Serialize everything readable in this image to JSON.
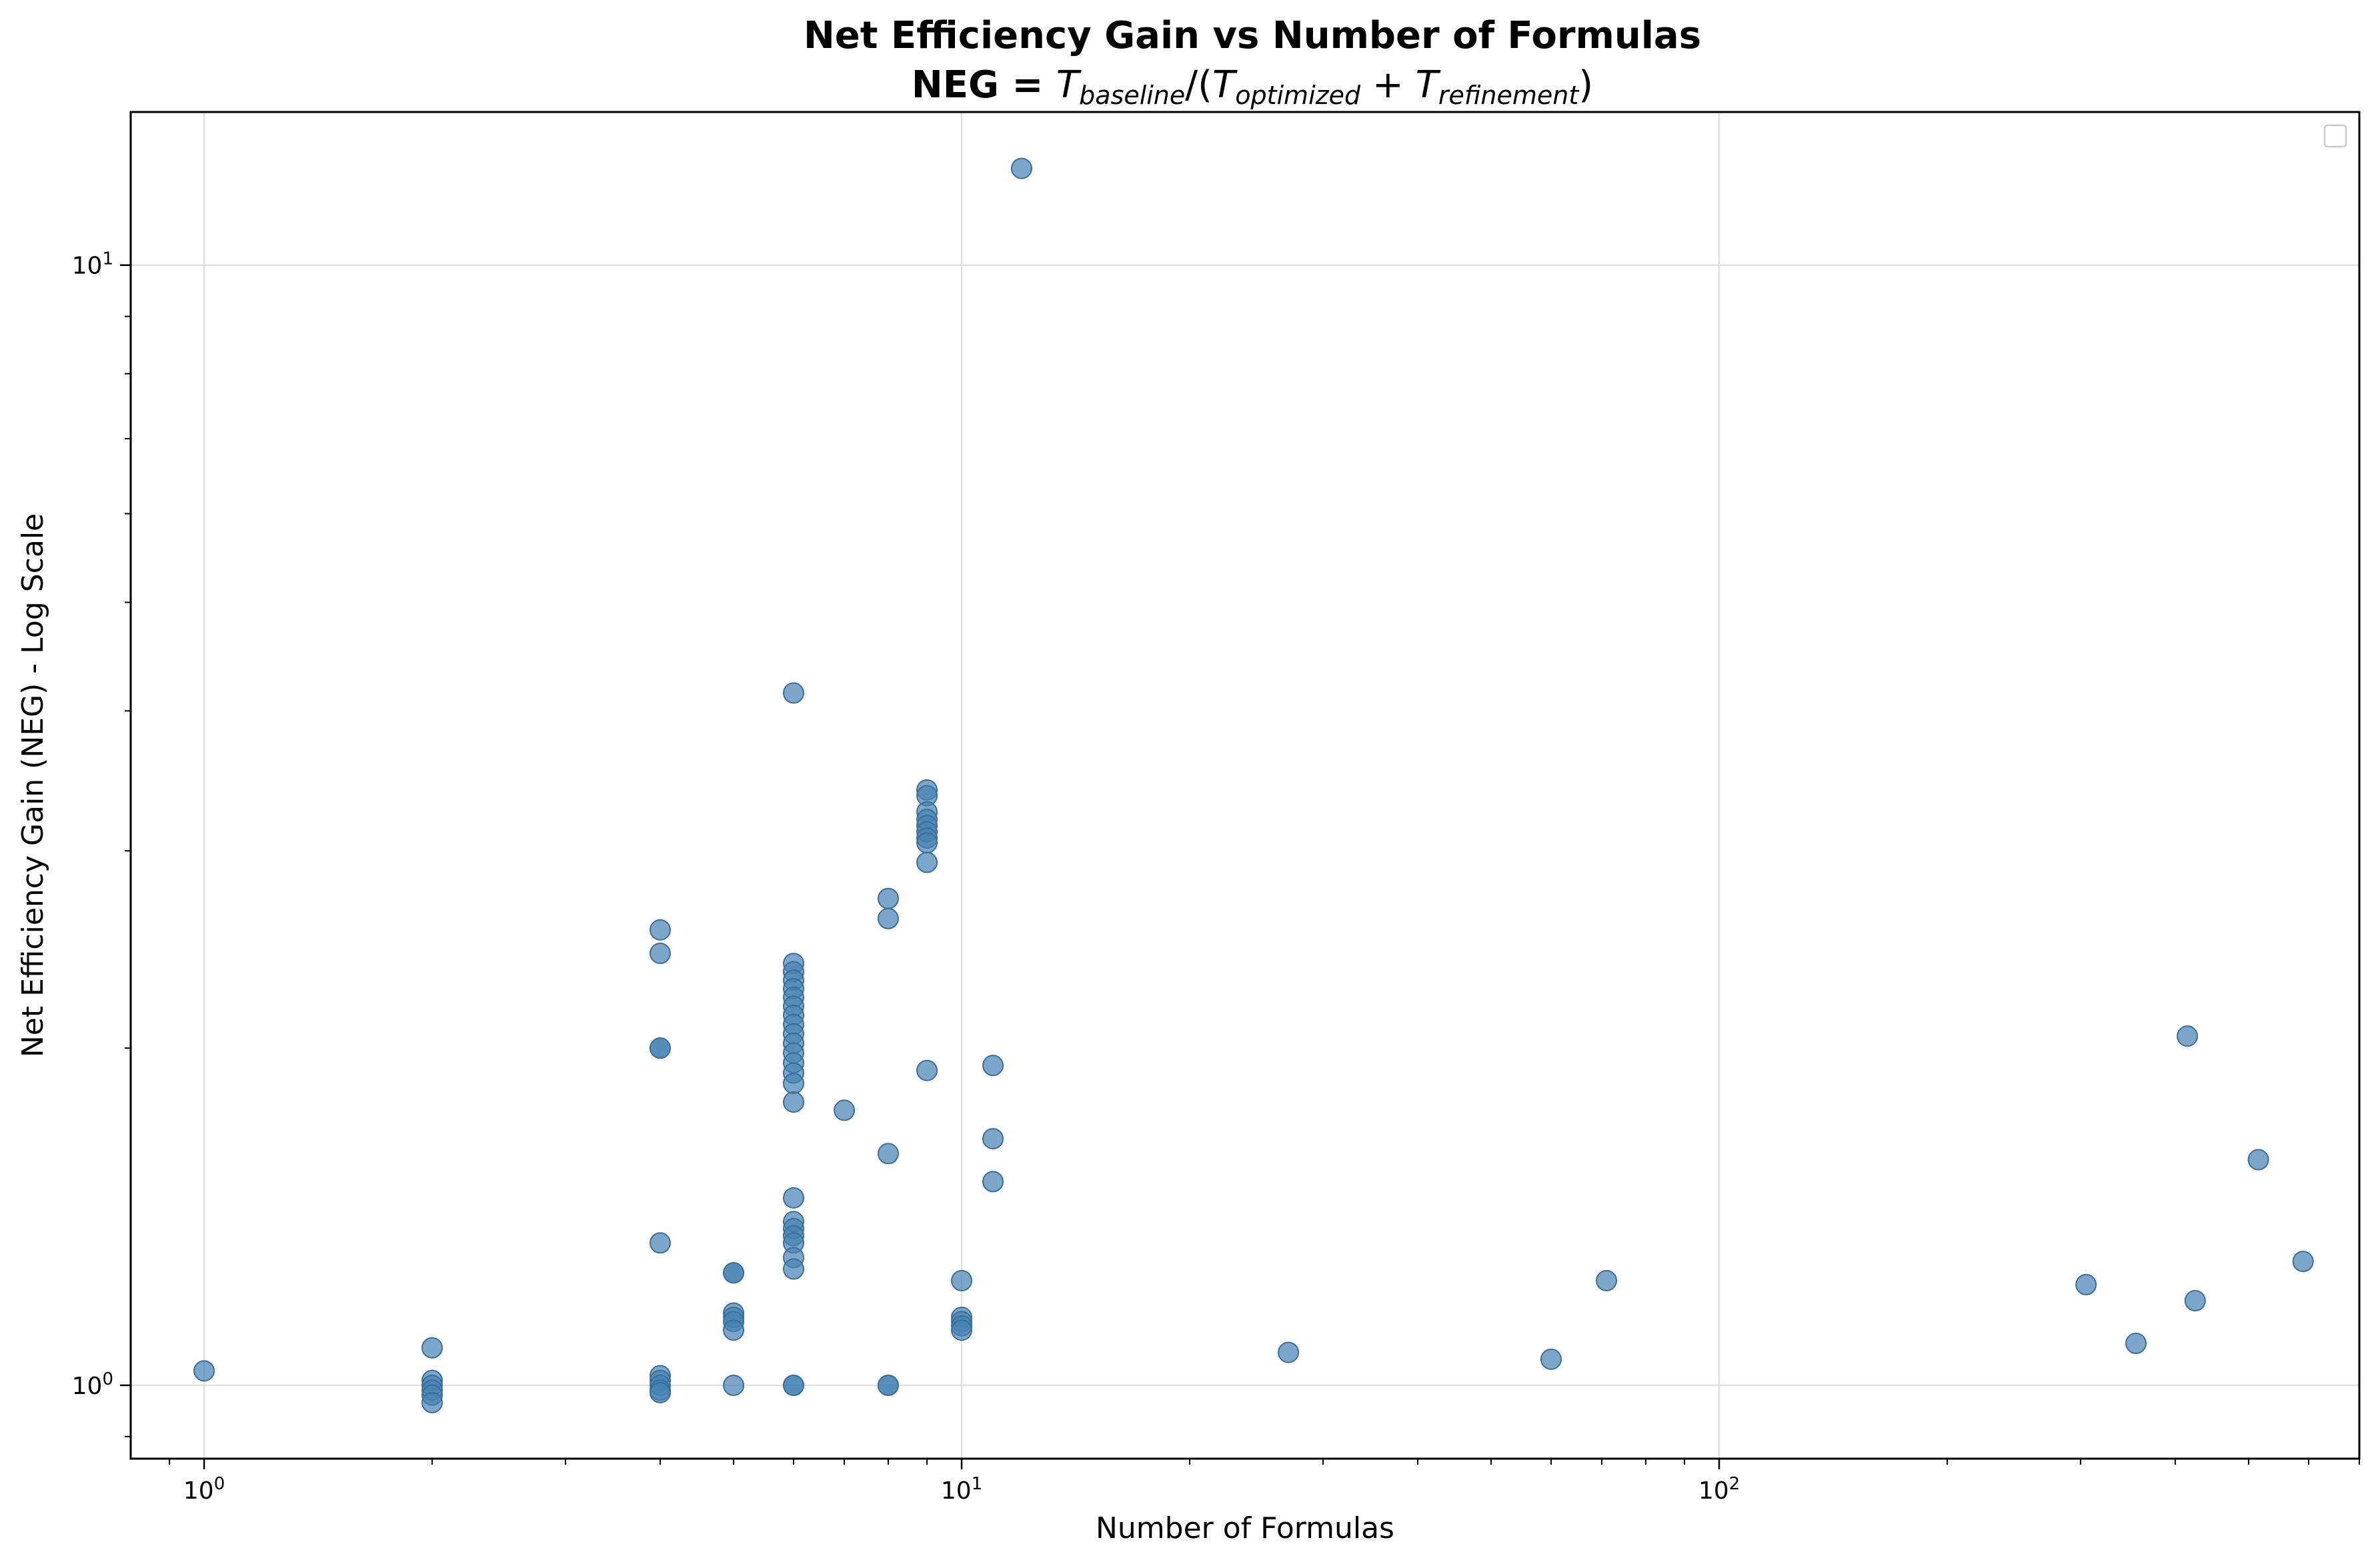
{
  "chart_data": {
    "type": "scatter",
    "title": "Net Efficiency Gain vs Number of Formulas",
    "subtitle": {
      "prefix": "NEG = ",
      "t": "T",
      "sub_baseline": "baseline",
      "sub_optimized": "optimized",
      "sub_refinement": "refinement"
    },
    "xlabel": "Number of Formulas",
    "ylabel": "Net Efficiency Gain (NEG) - Log Scale",
    "xscale": "log",
    "yscale": "log",
    "xlim": [
      0.8,
      700
    ],
    "ylim": [
      0.86,
      13.7
    ],
    "x_ticks": [
      {
        "value": 1,
        "base": "10",
        "exp": "0"
      },
      {
        "value": 10,
        "base": "10",
        "exp": "1"
      },
      {
        "value": 100,
        "base": "10",
        "exp": "2"
      }
    ],
    "y_ticks": [
      {
        "value": 1,
        "base": "10",
        "exp": "0"
      },
      {
        "value": 10,
        "base": "10",
        "exp": "1"
      }
    ],
    "grid": true,
    "legend": "top-right (empty)",
    "color": "#4682b4",
    "points": [
      [
        1,
        1.03
      ],
      [
        2,
        1.08
      ],
      [
        2,
        1.01
      ],
      [
        2,
        1.0
      ],
      [
        2,
        0.99
      ],
      [
        2,
        0.98
      ],
      [
        2,
        0.965
      ],
      [
        4,
        2.55
      ],
      [
        4,
        2.43
      ],
      [
        4,
        2.0
      ],
      [
        4,
        2.0
      ],
      [
        4,
        1.34
      ],
      [
        4,
        1.02
      ],
      [
        4,
        1.01
      ],
      [
        4,
        1.0
      ],
      [
        4,
        0.99
      ],
      [
        4,
        0.985
      ],
      [
        5,
        1.26
      ],
      [
        5,
        1.26
      ],
      [
        5,
        1.16
      ],
      [
        5,
        1.15
      ],
      [
        5,
        1.14
      ],
      [
        5,
        1.12
      ],
      [
        5,
        1.0
      ],
      [
        6,
        4.15
      ],
      [
        6,
        2.38
      ],
      [
        6,
        2.34
      ],
      [
        6,
        2.3
      ],
      [
        6,
        2.26
      ],
      [
        6,
        2.22
      ],
      [
        6,
        2.18
      ],
      [
        6,
        2.14
      ],
      [
        6,
        2.1
      ],
      [
        6,
        2.06
      ],
      [
        6,
        2.02
      ],
      [
        6,
        1.98
      ],
      [
        6,
        1.94
      ],
      [
        6,
        1.9
      ],
      [
        6,
        1.86
      ],
      [
        6,
        1.79
      ],
      [
        6,
        1.47
      ],
      [
        6,
        1.4
      ],
      [
        6,
        1.38
      ],
      [
        6,
        1.36
      ],
      [
        6,
        1.34
      ],
      [
        6,
        1.3
      ],
      [
        6,
        1.27
      ],
      [
        6,
        1.0
      ],
      [
        6,
        1.0
      ],
      [
        7,
        1.76
      ],
      [
        8,
        2.72
      ],
      [
        8,
        2.61
      ],
      [
        8,
        1.61
      ],
      [
        8,
        1.0
      ],
      [
        8,
        1.0
      ],
      [
        9,
        3.4
      ],
      [
        9,
        3.36
      ],
      [
        9,
        3.25
      ],
      [
        9,
        3.2
      ],
      [
        9,
        3.16
      ],
      [
        9,
        3.12
      ],
      [
        9,
        3.08
      ],
      [
        9,
        3.05
      ],
      [
        9,
        2.93
      ],
      [
        9,
        1.91
      ],
      [
        10,
        1.24
      ],
      [
        10,
        1.15
      ],
      [
        10,
        1.14
      ],
      [
        10,
        1.13
      ],
      [
        10,
        1.12
      ],
      [
        11,
        1.93
      ],
      [
        11,
        1.66
      ],
      [
        11,
        1.52
      ],
      [
        12,
        12.2
      ],
      [
        27,
        1.07
      ],
      [
        60,
        1.055
      ],
      [
        71,
        1.24
      ],
      [
        305,
        1.23
      ],
      [
        355,
        1.09
      ],
      [
        415,
        2.05
      ],
      [
        425,
        1.19
      ],
      [
        515,
        1.59
      ],
      [
        590,
        1.29
      ]
    ]
  }
}
